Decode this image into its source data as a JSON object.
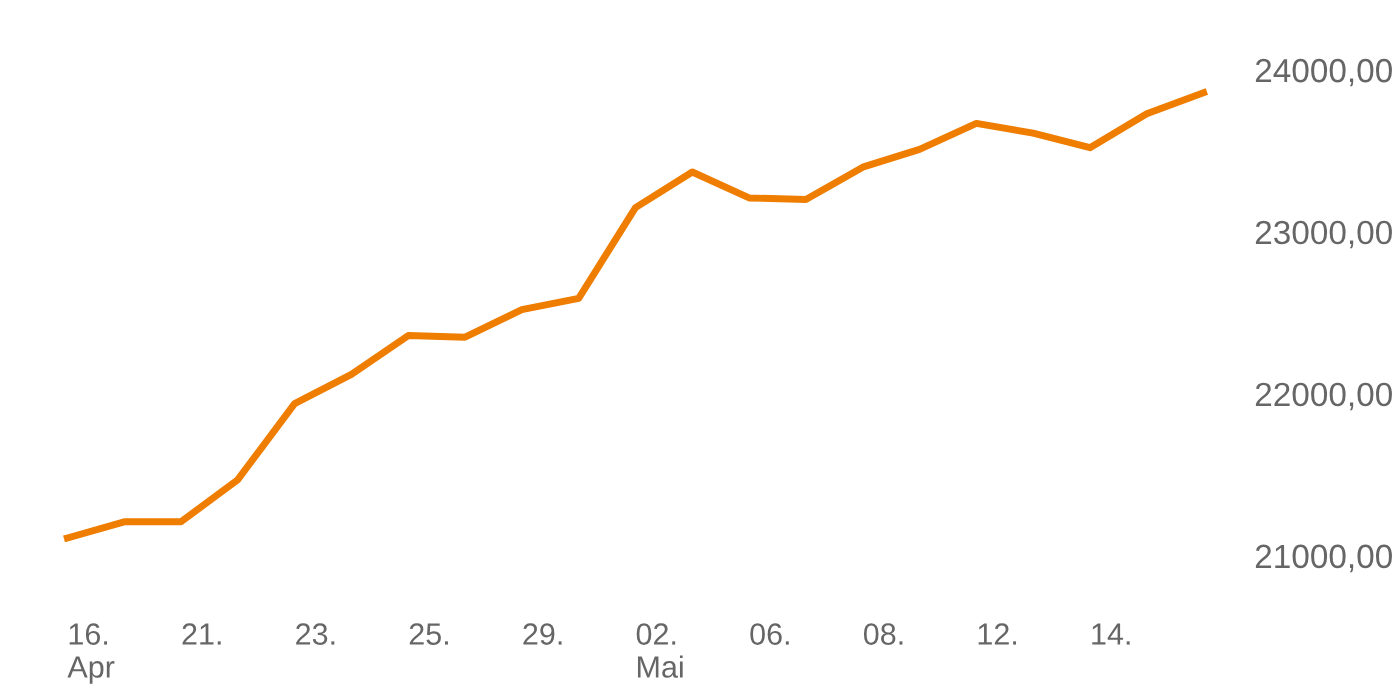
{
  "chart_data": {
    "type": "line",
    "categories": [
      "16.\nApr",
      null,
      "21.",
      null,
      "23.",
      null,
      "25.",
      null,
      "29.",
      null,
      "02.\nMai",
      null,
      "06.",
      null,
      "08.",
      null,
      "12.",
      null,
      "14.",
      null,
      null
    ],
    "series": [
      {
        "color": "#ef7d00",
        "values": [
          21110,
          21210,
          21210,
          21470,
          21940,
          22120,
          22360,
          22350,
          22520,
          22590,
          23150,
          23370,
          23210,
          23200,
          23400,
          23510,
          23670,
          23610,
          23520,
          23730,
          23860
        ]
      }
    ],
    "ylim": [
      21000,
      24000
    ],
    "yticks": [
      {
        "value": 21000,
        "label": "21000,00"
      },
      {
        "value": 22000,
        "label": "22000,00"
      },
      {
        "value": 23000,
        "label": "23000,00"
      },
      {
        "value": 24000,
        "label": "24000,00"
      }
    ],
    "grid": false,
    "marker": "none",
    "line_style": "solid"
  }
}
